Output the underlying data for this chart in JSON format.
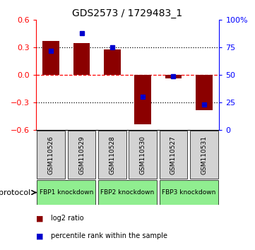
{
  "title": "GDS2573 / 1729483_1",
  "categories": [
    "GSM110526",
    "GSM110529",
    "GSM110528",
    "GSM110530",
    "GSM110527",
    "GSM110531"
  ],
  "red_bars": [
    0.37,
    0.35,
    0.28,
    -0.54,
    -0.04,
    -0.38
  ],
  "blue_percentiles": [
    72,
    88,
    75,
    30,
    49,
    23
  ],
  "ylim_left": [
    -0.6,
    0.6
  ],
  "ylim_right": [
    0,
    100
  ],
  "yticks_left": [
    -0.6,
    -0.3,
    0.0,
    0.3,
    0.6
  ],
  "yticks_right": [
    0,
    25,
    50,
    75,
    100
  ],
  "ytick_labels_right": [
    "0",
    "25",
    "50",
    "75",
    "100%"
  ],
  "hlines_dotted": [
    0.3,
    -0.3
  ],
  "bar_color": "#8B0000",
  "blue_color": "#0000CD",
  "bar_width": 0.55,
  "protocol_label": "protocol",
  "group_defs": [
    {
      "start": 0,
      "end": 1,
      "label": "FBP1 knockdown"
    },
    {
      "start": 2,
      "end": 3,
      "label": "FBP2 knockdown"
    },
    {
      "start": 4,
      "end": 5,
      "label": "FBP3 knockdown"
    }
  ],
  "legend_items": [
    {
      "label": "log2 ratio",
      "color": "#8B0000"
    },
    {
      "label": "percentile rank within the sample",
      "color": "#0000CD"
    }
  ],
  "bg_color": "#ffffff",
  "grey_box": "#d3d3d3",
  "green_box": "#90EE90"
}
